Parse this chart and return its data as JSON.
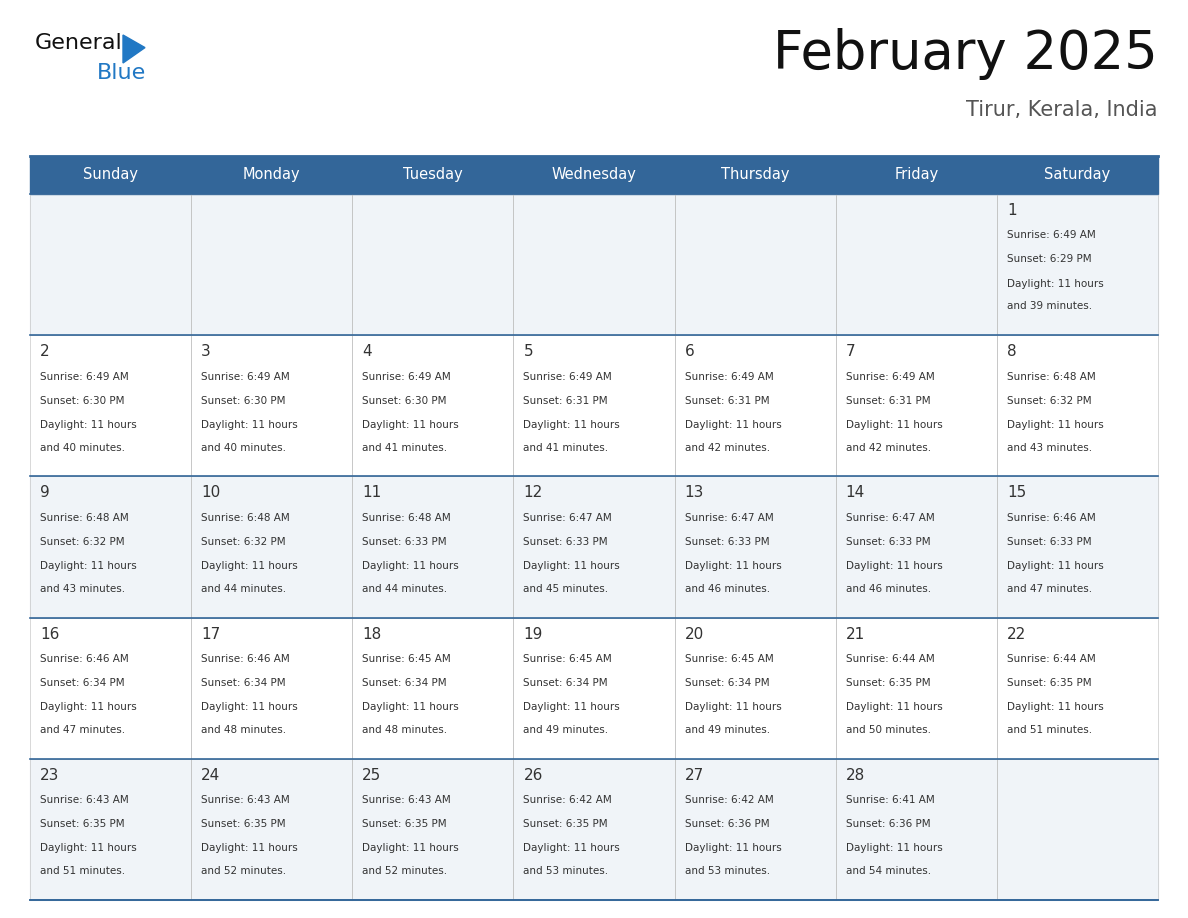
{
  "title": "February 2025",
  "subtitle": "Tirur, Kerala, India",
  "header_bg": "#336699",
  "header_text_color": "#ffffff",
  "day_names": [
    "Sunday",
    "Monday",
    "Tuesday",
    "Wednesday",
    "Thursday",
    "Friday",
    "Saturday"
  ],
  "days": [
    {
      "day": 1,
      "col": 6,
      "row": 0,
      "sunrise": "6:49 AM",
      "sunset": "6:29 PM",
      "daylight": "11 hours and 39 minutes."
    },
    {
      "day": 2,
      "col": 0,
      "row": 1,
      "sunrise": "6:49 AM",
      "sunset": "6:30 PM",
      "daylight": "11 hours and 40 minutes."
    },
    {
      "day": 3,
      "col": 1,
      "row": 1,
      "sunrise": "6:49 AM",
      "sunset": "6:30 PM",
      "daylight": "11 hours and 40 minutes."
    },
    {
      "day": 4,
      "col": 2,
      "row": 1,
      "sunrise": "6:49 AM",
      "sunset": "6:30 PM",
      "daylight": "11 hours and 41 minutes."
    },
    {
      "day": 5,
      "col": 3,
      "row": 1,
      "sunrise": "6:49 AM",
      "sunset": "6:31 PM",
      "daylight": "11 hours and 41 minutes."
    },
    {
      "day": 6,
      "col": 4,
      "row": 1,
      "sunrise": "6:49 AM",
      "sunset": "6:31 PM",
      "daylight": "11 hours and 42 minutes."
    },
    {
      "day": 7,
      "col": 5,
      "row": 1,
      "sunrise": "6:49 AM",
      "sunset": "6:31 PM",
      "daylight": "11 hours and 42 minutes."
    },
    {
      "day": 8,
      "col": 6,
      "row": 1,
      "sunrise": "6:48 AM",
      "sunset": "6:32 PM",
      "daylight": "11 hours and 43 minutes."
    },
    {
      "day": 9,
      "col": 0,
      "row": 2,
      "sunrise": "6:48 AM",
      "sunset": "6:32 PM",
      "daylight": "11 hours and 43 minutes."
    },
    {
      "day": 10,
      "col": 1,
      "row": 2,
      "sunrise": "6:48 AM",
      "sunset": "6:32 PM",
      "daylight": "11 hours and 44 minutes."
    },
    {
      "day": 11,
      "col": 2,
      "row": 2,
      "sunrise": "6:48 AM",
      "sunset": "6:33 PM",
      "daylight": "11 hours and 44 minutes."
    },
    {
      "day": 12,
      "col": 3,
      "row": 2,
      "sunrise": "6:47 AM",
      "sunset": "6:33 PM",
      "daylight": "11 hours and 45 minutes."
    },
    {
      "day": 13,
      "col": 4,
      "row": 2,
      "sunrise": "6:47 AM",
      "sunset": "6:33 PM",
      "daylight": "11 hours and 46 minutes."
    },
    {
      "day": 14,
      "col": 5,
      "row": 2,
      "sunrise": "6:47 AM",
      "sunset": "6:33 PM",
      "daylight": "11 hours and 46 minutes."
    },
    {
      "day": 15,
      "col": 6,
      "row": 2,
      "sunrise": "6:46 AM",
      "sunset": "6:33 PM",
      "daylight": "11 hours and 47 minutes."
    },
    {
      "day": 16,
      "col": 0,
      "row": 3,
      "sunrise": "6:46 AM",
      "sunset": "6:34 PM",
      "daylight": "11 hours and 47 minutes."
    },
    {
      "day": 17,
      "col": 1,
      "row": 3,
      "sunrise": "6:46 AM",
      "sunset": "6:34 PM",
      "daylight": "11 hours and 48 minutes."
    },
    {
      "day": 18,
      "col": 2,
      "row": 3,
      "sunrise": "6:45 AM",
      "sunset": "6:34 PM",
      "daylight": "11 hours and 48 minutes."
    },
    {
      "day": 19,
      "col": 3,
      "row": 3,
      "sunrise": "6:45 AM",
      "sunset": "6:34 PM",
      "daylight": "11 hours and 49 minutes."
    },
    {
      "day": 20,
      "col": 4,
      "row": 3,
      "sunrise": "6:45 AM",
      "sunset": "6:34 PM",
      "daylight": "11 hours and 49 minutes."
    },
    {
      "day": 21,
      "col": 5,
      "row": 3,
      "sunrise": "6:44 AM",
      "sunset": "6:35 PM",
      "daylight": "11 hours and 50 minutes."
    },
    {
      "day": 22,
      "col": 6,
      "row": 3,
      "sunrise": "6:44 AM",
      "sunset": "6:35 PM",
      "daylight": "11 hours and 51 minutes."
    },
    {
      "day": 23,
      "col": 0,
      "row": 4,
      "sunrise": "6:43 AM",
      "sunset": "6:35 PM",
      "daylight": "11 hours and 51 minutes."
    },
    {
      "day": 24,
      "col": 1,
      "row": 4,
      "sunrise": "6:43 AM",
      "sunset": "6:35 PM",
      "daylight": "11 hours and 52 minutes."
    },
    {
      "day": 25,
      "col": 2,
      "row": 4,
      "sunrise": "6:43 AM",
      "sunset": "6:35 PM",
      "daylight": "11 hours and 52 minutes."
    },
    {
      "day": 26,
      "col": 3,
      "row": 4,
      "sunrise": "6:42 AM",
      "sunset": "6:35 PM",
      "daylight": "11 hours and 53 minutes."
    },
    {
      "day": 27,
      "col": 4,
      "row": 4,
      "sunrise": "6:42 AM",
      "sunset": "6:36 PM",
      "daylight": "11 hours and 53 minutes."
    },
    {
      "day": 28,
      "col": 5,
      "row": 4,
      "sunrise": "6:41 AM",
      "sunset": "6:36 PM",
      "daylight": "11 hours and 54 minutes."
    }
  ],
  "num_rows": 5,
  "logo_color_general": "#111111",
  "logo_color_blue": "#2178c4",
  "logo_triangle_color": "#2178c4",
  "cell_bg_even": "#f0f4f8",
  "cell_bg_odd": "#ffffff",
  "text_color": "#333333",
  "border_color": "#aaaaaa",
  "week_divider_color": "#336699"
}
